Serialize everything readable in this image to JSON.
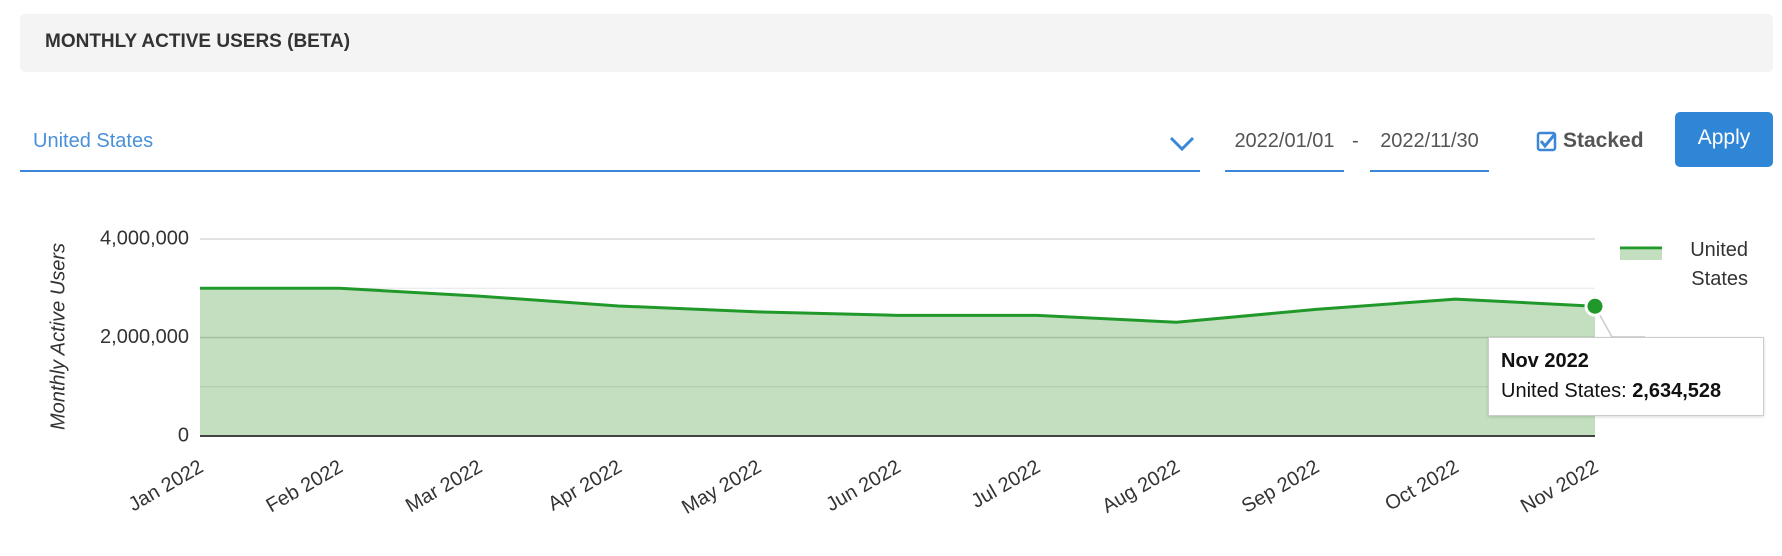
{
  "chart_data": {
    "type": "area",
    "title": "MONTHLY ACTIVE USERS (BETA)",
    "controls": {
      "country": "United States",
      "start_date": "2022/01/01",
      "date_separator": "-",
      "end_date": "2022/11/30",
      "stacked_label": "Stacked",
      "stacked": true,
      "apply": "Apply"
    },
    "y_label": "Monthly Active Users",
    "categories": [
      "Jan 2022",
      "Feb 2022",
      "Mar 2022",
      "Apr 2022",
      "May 2022",
      "Jun 2022",
      "Jul 2022",
      "Aug 2022",
      "Sep 2022",
      "Oct 2022",
      "Nov 2022"
    ],
    "series": [
      {
        "name": "United States",
        "color": "#21992a",
        "fill": "#c3dfbf",
        "values": [
          3000000,
          3000000,
          2840000,
          2640000,
          2520000,
          2450000,
          2450000,
          2310000,
          2570000,
          2780000,
          2634528
        ]
      }
    ],
    "ylim": [
      0,
      4000000
    ],
    "yticks": [
      0,
      {
        "value": 2000000,
        "label": "2,000,000"
      },
      {
        "value": 4000000,
        "label": "4,000,000"
      }
    ],
    "grid": true,
    "legend": "right",
    "tooltip": {
      "title": "Nov 2022",
      "label": "United States:",
      "value": "2,634,528"
    }
  }
}
